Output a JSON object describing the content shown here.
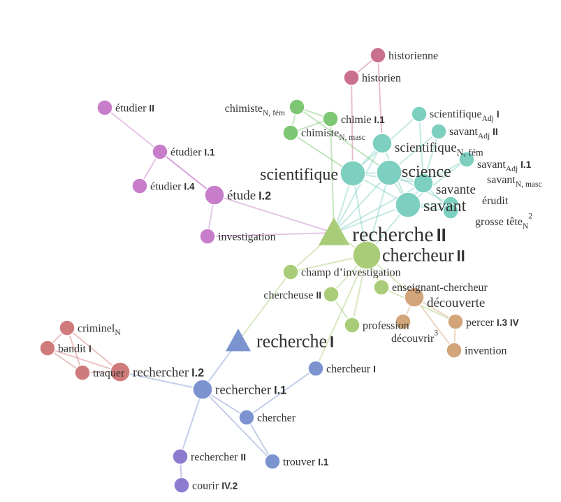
{
  "colors": {
    "pink": "#c9708f",
    "magenta": "#c77dc9",
    "green": "#7cc674",
    "teal": "#7dcfc0",
    "lightgreen": "#a9cc78",
    "tan": "#d2a57a",
    "blue": "#7b93cf",
    "red": "#d07b7b",
    "purple": "#8d7bd0"
  },
  "nodes": [
    {
      "id": "historienne",
      "text": "historienne",
      "group": "pink",
      "size": "s"
    },
    {
      "id": "historien",
      "text": "historien",
      "group": "pink",
      "size": "s"
    },
    {
      "id": "etudierII",
      "text": "étudier",
      "num": "II",
      "group": "magenta",
      "size": "s"
    },
    {
      "id": "etudierI1",
      "text": "étudier",
      "num": "I.1",
      "group": "magenta",
      "size": "s"
    },
    {
      "id": "etudierI4",
      "text": "étudier",
      "num": "I.4",
      "group": "magenta",
      "size": "s"
    },
    {
      "id": "etudeI2",
      "text": "étude",
      "num": "I.2",
      "group": "magenta",
      "size": "m"
    },
    {
      "id": "investigation",
      "text": "investigation",
      "group": "magenta",
      "size": "s"
    },
    {
      "id": "chimisteF",
      "text": "chimiste",
      "sub": "N, fém",
      "group": "green",
      "size": "s"
    },
    {
      "id": "chimieI1",
      "text": "chimie",
      "num": "I.1",
      "group": "green",
      "size": "s"
    },
    {
      "id": "chimisteM",
      "text": "chimiste",
      "sub": "N, masc",
      "group": "green",
      "size": "s"
    },
    {
      "id": "scientAdjI",
      "text": "scientifique",
      "sub": "Adj",
      "num": "I",
      "group": "teal",
      "size": "s"
    },
    {
      "id": "savantAdjII",
      "text": "savant",
      "sub": "Adj",
      "num": "II",
      "group": "teal",
      "size": "s"
    },
    {
      "id": "scientNF",
      "text": "scientifique",
      "sub": "N, fém",
      "group": "teal",
      "size": "m"
    },
    {
      "id": "savantAdjI1",
      "text": "savant",
      "sub": "Adj",
      "num": "I.1",
      "group": "teal",
      "size": "s"
    },
    {
      "id": "scientifique",
      "text": "scientifique",
      "group": "teal",
      "size": "l"
    },
    {
      "id": "science",
      "text": "science",
      "group": "teal",
      "size": "l"
    },
    {
      "id": "savante",
      "text": "savante",
      "group": "teal",
      "size": "m"
    },
    {
      "id": "savantNM",
      "text": "savant",
      "sub": "N, masc",
      "group": "teal",
      "size": "s"
    },
    {
      "id": "savant",
      "text": "savant",
      "group": "teal",
      "size": "l"
    },
    {
      "id": "erudit",
      "text": "érudit",
      "group": "teal",
      "size": "s"
    },
    {
      "id": "grossetete",
      "text": "grosse tête",
      "sub": "N",
      "sup": "2",
      "group": "teal",
      "size": "s"
    },
    {
      "id": "rechercheII",
      "text": "recherche",
      "num": "II",
      "group": "lightgreen",
      "size": "xl",
      "shape": "triangle"
    },
    {
      "id": "chercheurII",
      "text": "chercheur",
      "num": "II",
      "group": "lightgreen",
      "size": "xl"
    },
    {
      "id": "champ",
      "text": "champ d’investigation",
      "group": "lightgreen",
      "size": "s"
    },
    {
      "id": "chercheuseII",
      "text": "chercheuse",
      "num": "II",
      "group": "lightgreen",
      "size": "s"
    },
    {
      "id": "enseignant",
      "text": "enseignant-chercheur",
      "group": "lightgreen",
      "size": "s"
    },
    {
      "id": "profession",
      "text": "profession",
      "group": "lightgreen",
      "size": "s"
    },
    {
      "id": "decouverte",
      "text": "découverte",
      "group": "tan",
      "size": "m"
    },
    {
      "id": "decouvrir",
      "text": "découvrir",
      "sup": "3",
      "group": "tan",
      "size": "s"
    },
    {
      "id": "percerIV",
      "text": "percer",
      "num": "I.3 IV",
      "group": "tan",
      "size": "s"
    },
    {
      "id": "invention",
      "text": "invention",
      "group": "tan",
      "size": "s"
    },
    {
      "id": "rechercheI",
      "text": "recherche",
      "num": "I",
      "group": "blue",
      "size": "xl",
      "shape": "triangle"
    },
    {
      "id": "chercheurI",
      "text": "chercheur",
      "num": "I",
      "group": "blue",
      "size": "s"
    },
    {
      "id": "rechercherI1",
      "text": "rechercher",
      "num": "I.1",
      "group": "blue",
      "size": "m"
    },
    {
      "id": "chercher",
      "text": "chercher",
      "group": "blue",
      "size": "s"
    },
    {
      "id": "trouverI1",
      "text": "trouver",
      "num": "I.1",
      "group": "blue",
      "size": "s"
    },
    {
      "id": "criminel",
      "text": "criminel",
      "sub": "N",
      "group": "red",
      "size": "s"
    },
    {
      "id": "banditI",
      "text": "bandit",
      "num": "I",
      "group": "red",
      "size": "s"
    },
    {
      "id": "traquer",
      "text": "traquer",
      "group": "red",
      "size": "s"
    },
    {
      "id": "rechercherI2",
      "text": "rechercher",
      "num": "I.2",
      "group": "red",
      "size": "m"
    },
    {
      "id": "rechercherII",
      "text": "rechercher",
      "num": "II",
      "group": "purple",
      "size": "s"
    },
    {
      "id": "courirIV2",
      "text": "courir",
      "num": "IV.2",
      "group": "purple",
      "size": "s"
    }
  ],
  "edges": [
    [
      "historienne",
      "historien"
    ],
    [
      "historienne",
      "scientNF"
    ],
    [
      "historien",
      "scientifique"
    ],
    [
      "etudierII",
      "etudeI2"
    ],
    [
      "etudierI1",
      "etudierI4"
    ],
    [
      "etudierI1",
      "etudeI2"
    ],
    [
      "etudeI2",
      "investigation"
    ],
    [
      "etudeI2",
      "rechercheII"
    ],
    [
      "investigation",
      "rechercheII"
    ],
    [
      "chimisteF",
      "chimisteM"
    ],
    [
      "chimisteF",
      "chimieI1"
    ],
    [
      "chimisteM",
      "chimieI1"
    ],
    [
      "chimisteM",
      "scientifique"
    ],
    [
      "chimisteF",
      "science"
    ],
    [
      "chimieI1",
      "rechercheII"
    ],
    [
      "scientAdjI",
      "scientifique"
    ],
    [
      "scientAdjI",
      "savante"
    ],
    [
      "savantAdjII",
      "savante"
    ],
    [
      "savantAdjII",
      "science"
    ],
    [
      "scientNF",
      "scientifique"
    ],
    [
      "scientNF",
      "savant"
    ],
    [
      "savantAdjI1",
      "savante"
    ],
    [
      "savantAdjI1",
      "savant"
    ],
    [
      "scientifique",
      "science"
    ],
    [
      "scientifique",
      "savante"
    ],
    [
      "scientifique",
      "savant"
    ],
    [
      "science",
      "savant"
    ],
    [
      "science",
      "savante"
    ],
    [
      "savante",
      "savant"
    ],
    [
      "savante",
      "grossetete"
    ],
    [
      "savant",
      "erudit"
    ],
    [
      "savant",
      "grossetete"
    ],
    [
      "science",
      "erudit"
    ],
    [
      "scientifique",
      "rechercheII"
    ],
    [
      "science",
      "rechercheII"
    ],
    [
      "savante",
      "rechercheII"
    ],
    [
      "savant",
      "rechercheII"
    ],
    [
      "scientNF",
      "rechercheII"
    ],
    [
      "science",
      "chercheurII"
    ],
    [
      "scientifique",
      "chercheurII"
    ],
    [
      "savant",
      "chercheurII"
    ],
    [
      "rechercheII",
      "chercheurII"
    ],
    [
      "rechercheII",
      "champ"
    ],
    [
      "chercheurII",
      "champ"
    ],
    [
      "chercheurII",
      "chercheuseII"
    ],
    [
      "chercheurII",
      "enseignant"
    ],
    [
      "chercheurII",
      "profession"
    ],
    [
      "chercheurII",
      "decouverte"
    ],
    [
      "chercheuseII",
      "profession"
    ],
    [
      "chercheurII",
      "chercheurI"
    ],
    [
      "decouverte",
      "decouvrir"
    ],
    [
      "decouverte",
      "percerIV"
    ],
    [
      "decouverte",
      "invention"
    ],
    [
      "percerIV",
      "invention"
    ],
    [
      "enseignant",
      "percerIV"
    ],
    [
      "champ",
      "rechercheI"
    ],
    [
      "rechercheI",
      "rechercherI1"
    ],
    [
      "chercheurI",
      "chercher"
    ],
    [
      "rechercherI1",
      "chercher"
    ],
    [
      "rechercherI1",
      "rechercherI2"
    ],
    [
      "rechercherI1",
      "rechercherII"
    ],
    [
      "chercher",
      "trouverI1"
    ],
    [
      "rechercherI1",
      "trouverI1"
    ],
    [
      "rechercherI2",
      "traquer"
    ],
    [
      "rechercherI2",
      "banditI"
    ],
    [
      "rechercherI2",
      "criminel"
    ],
    [
      "banditI",
      "traquer"
    ],
    [
      "banditI",
      "criminel"
    ],
    [
      "criminel",
      "traquer"
    ],
    [
      "rechercherII",
      "courirIV2"
    ]
  ]
}
